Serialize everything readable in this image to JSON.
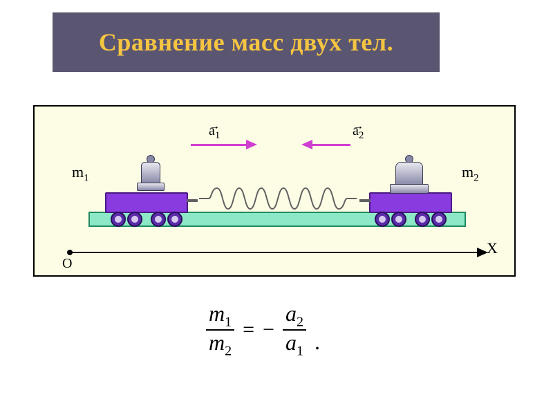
{
  "header": {
    "text": "Сравнение масс двух тел.",
    "bg_color": "#5a5570",
    "text_color": "#f5c542"
  },
  "diagram": {
    "box_border": "#000000",
    "box_bg": "#fdfde6",
    "track_fill": "#8de8c8",
    "track_border": "#1e8a5e",
    "cart_body_fill": "#8a3be0",
    "cart_body_border": "#4a1a82",
    "wheel_fill": "#5a2ca8",
    "wheel_border": "#2a0f5a",
    "hub_fill": "#d8c8f0",
    "weight_fill_top": "#e8e8f0",
    "weight_fill_bot": "#8888a8",
    "weight_border": "#3a3a52",
    "spring_color": "#606060",
    "hook_color": "#606060",
    "arrow_color": "#d040d0",
    "arrow_length_1": 80,
    "arrow_length_2": 55,
    "text_color": "#000000",
    "m1_label": "m",
    "m1_sub": "1",
    "m2_label": "m",
    "m2_sub": "2",
    "a1_label": "a",
    "a1_sub": "1",
    "a2_label": "a",
    "a2_sub": "2",
    "origin_label": "O",
    "x_label": "X"
  },
  "formula": {
    "num_left": "m",
    "num_left_sub": "1",
    "den_left": "m",
    "den_left_sub": "2",
    "eq": "=",
    "minus": "−",
    "num_right": "a",
    "num_right_sub": "2",
    "den_right": "a",
    "den_right_sub": "1",
    "period": ".",
    "color": "#000000"
  }
}
